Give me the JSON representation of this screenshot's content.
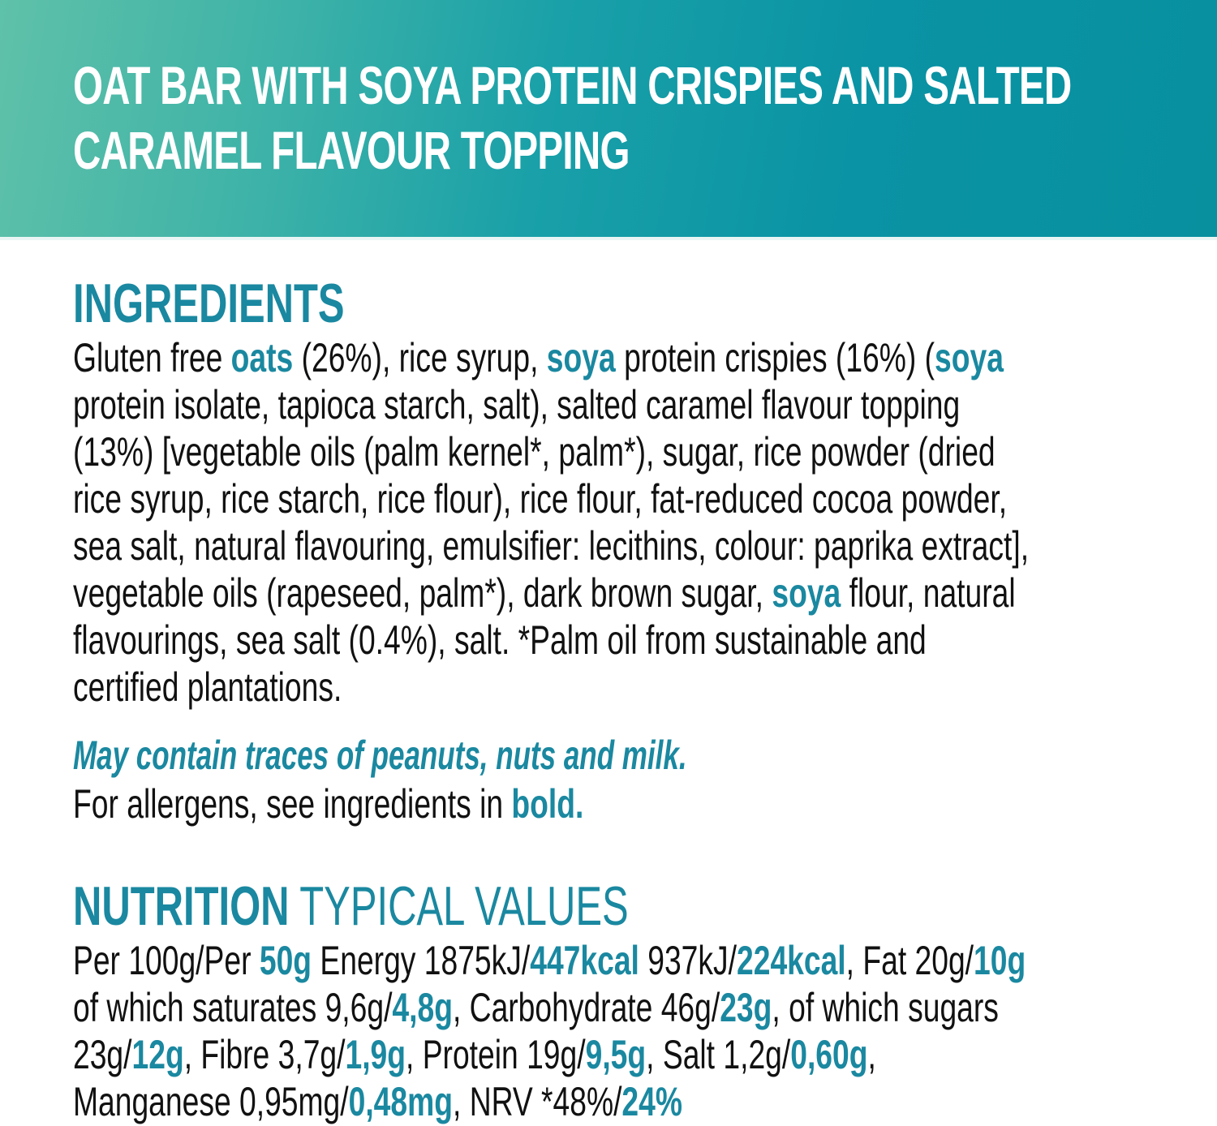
{
  "colors": {
    "accent": "#1a88a0",
    "banner_left": "#5fc1a9",
    "banner_right": "#08909f",
    "text": "#111111"
  },
  "title": {
    "lines": [
      "OAT BAR WITH SOYA PROTEIN CRISPIES AND SALTED",
      "CARAMEL FLAVOUR TOPPING"
    ]
  },
  "ingredients": {
    "heading": "INGREDIENTS",
    "lines": [
      [
        {
          "t": "Gluten free "
        },
        {
          "t": "oats",
          "b": true
        },
        {
          "t": " (26%), rice syrup, "
        },
        {
          "t": "soya",
          "b": true
        },
        {
          "t": " protein crispies (16%) ("
        },
        {
          "t": "soya",
          "b": true
        }
      ],
      [
        {
          "t": "protein isolate, tapioca starch, salt), salted caramel flavour topping"
        }
      ],
      [
        {
          "t": "(13%) [vegetable oils (palm kernel*, palm*), sugar, rice powder (dried"
        }
      ],
      [
        {
          "t": "rice syrup, rice starch, rice flour), rice flour, fat-reduced cocoa powder,"
        }
      ],
      [
        {
          "t": "sea salt, natural flavouring, emulsifier: lecithins, colour: paprika extract],"
        }
      ],
      [
        {
          "t": "vegetable oils (rapeseed, palm*), dark brown sugar, "
        },
        {
          "t": "soya",
          "b": true
        },
        {
          "t": " flour, natural"
        }
      ],
      [
        {
          "t": "flavourings, sea salt (0.4%), salt. *Palm oil from sustainable and"
        }
      ],
      [
        {
          "t": "certified plantations."
        }
      ]
    ],
    "may_contain": "May contain traces of peanuts, nuts and milk.",
    "allergen_note": [
      {
        "t": "For allergens, see ingredients in "
      },
      {
        "t": "bold.",
        "b": true
      }
    ]
  },
  "nutrition": {
    "heading_bold": "NUTRITION",
    "heading_light": " TYPICAL VALUES",
    "lines": [
      [
        {
          "t": "Per 100g/Per "
        },
        {
          "t": "50g",
          "b": true
        },
        {
          "t": " Energy 1875kJ/"
        },
        {
          "t": "447kcal",
          "b": true
        },
        {
          "t": " 937kJ/"
        },
        {
          "t": "224kcal",
          "b": true
        },
        {
          "t": ", Fat 20g/"
        },
        {
          "t": "10g",
          "b": true
        }
      ],
      [
        {
          "t": "of which saturates 9,6g/"
        },
        {
          "t": "4,8g",
          "b": true
        },
        {
          "t": ", Carbohydrate 46g/"
        },
        {
          "t": "23g",
          "b": true
        },
        {
          "t": ", of which sugars"
        }
      ],
      [
        {
          "t": "23g/"
        },
        {
          "t": "12g",
          "b": true
        },
        {
          "t": ", Fibre 3,7g/"
        },
        {
          "t": "1,9g",
          "b": true
        },
        {
          "t": ", Protein 19g/"
        },
        {
          "t": "9,5g",
          "b": true
        },
        {
          "t": ", Salt 1,2g/"
        },
        {
          "t": "0,60g",
          "b": true
        },
        {
          "t": ","
        }
      ],
      [
        {
          "t": "Manganese 0,95mg/"
        },
        {
          "t": "0,48mg",
          "b": true
        },
        {
          "t": ", NRV *48%/"
        },
        {
          "t": "24%",
          "b": true
        }
      ]
    ]
  }
}
